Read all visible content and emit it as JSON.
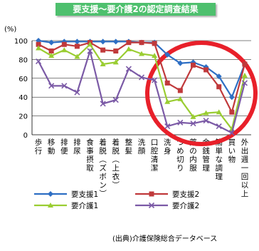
{
  "chart_data": {
    "type": "line",
    "title": "要支援～要介護2の認定調査結果",
    "ylabel": "(%)",
    "ylim": [
      0,
      100
    ],
    "yticks": [
      0,
      20,
      40,
      60,
      80,
      100
    ],
    "grid": true,
    "legend_placement": "bottom",
    "categories": [
      "歩行",
      "移動",
      "排便",
      "排尿",
      "食事摂取",
      "着脱(ズボン)",
      "着脱(上衣)",
      "整髪",
      "洗顔",
      "口腔清潔",
      "洗身",
      "つめ切り",
      "薬の内服",
      "金銭管理",
      "簡単な調理",
      "買い物",
      "外出週一回以上"
    ],
    "series": [
      {
        "name": "要支援1",
        "color": "#2e6fc4",
        "marker": "diamond",
        "values": [
          100,
          98,
          99,
          99,
          99,
          99,
          99,
          99,
          98,
          98,
          85,
          76,
          77,
          72,
          62,
          40,
          75
        ]
      },
      {
        "name": "要支援2",
        "color": "#c0393b",
        "marker": "square",
        "values": [
          96,
          89,
          96,
          94,
          98,
          90,
          89,
          98,
          98,
          97,
          55,
          47,
          74,
          69,
          51,
          24,
          75
        ]
      },
      {
        "name": "要介護1",
        "color": "#9acd32",
        "marker": "triangle",
        "values": [
          92,
          84,
          90,
          83,
          96,
          75,
          77,
          91,
          86,
          84,
          35,
          38,
          19,
          23,
          24,
          6,
          63
        ]
      },
      {
        "name": "要介護2",
        "color": "#7b5aa6",
        "marker": "x",
        "values": [
          78,
          52,
          52,
          45,
          89,
          33,
          37,
          70,
          61,
          58,
          9,
          13,
          12,
          15,
          9,
          2,
          55
        ]
      }
    ]
  },
  "source_note": "(出典)介護保険総合データベース"
}
